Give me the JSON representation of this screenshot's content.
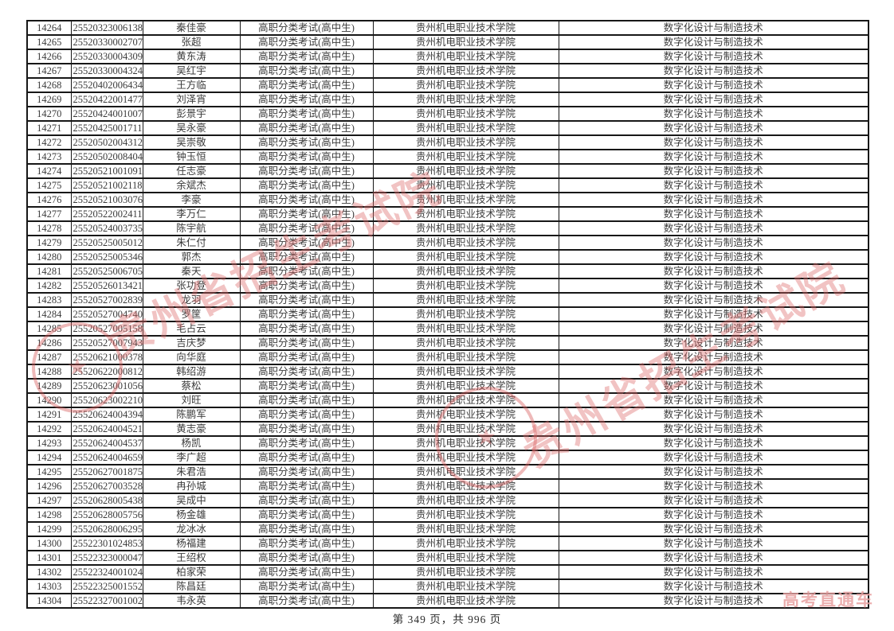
{
  "page": {
    "footer": "第 349 页，共 996 页"
  },
  "watermark": {
    "text": "贵州省招生考试院",
    "brand": "高考直通车",
    "red": "#d65858"
  },
  "table": {
    "rows": [
      {
        "seq": "14264",
        "exam_id": "25520323006138",
        "name": "秦佳豪",
        "exam_type": "高职分类考试(高中生)",
        "school": "贵州机电职业技术学院",
        "major": "数字化设计与制造技术"
      },
      {
        "seq": "14265",
        "exam_id": "25520330002707",
        "name": "张超",
        "exam_type": "高职分类考试(高中生)",
        "school": "贵州机电职业技术学院",
        "major": "数字化设计与制造技术"
      },
      {
        "seq": "14266",
        "exam_id": "25520330004309",
        "name": "黄东涛",
        "exam_type": "高职分类考试(高中生)",
        "school": "贵州机电职业技术学院",
        "major": "数字化设计与制造技术"
      },
      {
        "seq": "14267",
        "exam_id": "25520330004324",
        "name": "吴红宇",
        "exam_type": "高职分类考试(高中生)",
        "school": "贵州机电职业技术学院",
        "major": "数字化设计与制造技术"
      },
      {
        "seq": "14268",
        "exam_id": "25520402006434",
        "name": "王方临",
        "exam_type": "高职分类考试(高中生)",
        "school": "贵州机电职业技术学院",
        "major": "数字化设计与制造技术"
      },
      {
        "seq": "14269",
        "exam_id": "25520422001477",
        "name": "刘泽宵",
        "exam_type": "高职分类考试(高中生)",
        "school": "贵州机电职业技术学院",
        "major": "数字化设计与制造技术"
      },
      {
        "seq": "14270",
        "exam_id": "25520424001007",
        "name": "彭景宇",
        "exam_type": "高职分类考试(高中生)",
        "school": "贵州机电职业技术学院",
        "major": "数字化设计与制造技术"
      },
      {
        "seq": "14271",
        "exam_id": "25520425001711",
        "name": "吴永豪",
        "exam_type": "高职分类考试(高中生)",
        "school": "贵州机电职业技术学院",
        "major": "数字化设计与制造技术"
      },
      {
        "seq": "14272",
        "exam_id": "25520502004312",
        "name": "吴崇敬",
        "exam_type": "高职分类考试(高中生)",
        "school": "贵州机电职业技术学院",
        "major": "数字化设计与制造技术"
      },
      {
        "seq": "14273",
        "exam_id": "25520502008404",
        "name": "钟玉恒",
        "exam_type": "高职分类考试(高中生)",
        "school": "贵州机电职业技术学院",
        "major": "数字化设计与制造技术"
      },
      {
        "seq": "14274",
        "exam_id": "25520521001091",
        "name": "任志豪",
        "exam_type": "高职分类考试(高中生)",
        "school": "贵州机电职业技术学院",
        "major": "数字化设计与制造技术"
      },
      {
        "seq": "14275",
        "exam_id": "25520521002118",
        "name": "余斌杰",
        "exam_type": "高职分类考试(高中生)",
        "school": "贵州机电职业技术学院",
        "major": "数字化设计与制造技术"
      },
      {
        "seq": "14276",
        "exam_id": "25520521003076",
        "name": "李豪",
        "exam_type": "高职分类考试(高中生)",
        "school": "贵州机电职业技术学院",
        "major": "数字化设计与制造技术"
      },
      {
        "seq": "14277",
        "exam_id": "25520522002411",
        "name": "李万仁",
        "exam_type": "高职分类考试(高中生)",
        "school": "贵州机电职业技术学院",
        "major": "数字化设计与制造技术"
      },
      {
        "seq": "14278",
        "exam_id": "25520524003735",
        "name": "陈宇航",
        "exam_type": "高职分类考试(高中生)",
        "school": "贵州机电职业技术学院",
        "major": "数字化设计与制造技术"
      },
      {
        "seq": "14279",
        "exam_id": "25520525005012",
        "name": "朱仁付",
        "exam_type": "高职分类考试(高中生)",
        "school": "贵州机电职业技术学院",
        "major": "数字化设计与制造技术"
      },
      {
        "seq": "14280",
        "exam_id": "25520525005346",
        "name": "郭杰",
        "exam_type": "高职分类考试(高中生)",
        "school": "贵州机电职业技术学院",
        "major": "数字化设计与制造技术"
      },
      {
        "seq": "14281",
        "exam_id": "25520525006705",
        "name": "秦天",
        "exam_type": "高职分类考试(高中生)",
        "school": "贵州机电职业技术学院",
        "major": "数字化设计与制造技术"
      },
      {
        "seq": "14282",
        "exam_id": "25520526013421",
        "name": "张功登",
        "exam_type": "高职分类考试(高中生)",
        "school": "贵州机电职业技术学院",
        "major": "数字化设计与制造技术"
      },
      {
        "seq": "14283",
        "exam_id": "25520527002839",
        "name": "龙羽",
        "exam_type": "高职分类考试(高中生)",
        "school": "贵州机电职业技术学院",
        "major": "数字化设计与制造技术"
      },
      {
        "seq": "14284",
        "exam_id": "25520527004740",
        "name": "罗筐",
        "exam_type": "高职分类考试(高中生)",
        "school": "贵州机电职业技术学院",
        "major": "数字化设计与制造技术"
      },
      {
        "seq": "14285",
        "exam_id": "25520527005158",
        "name": "毛占云",
        "exam_type": "高职分类考试(高中生)",
        "school": "贵州机电职业技术学院",
        "major": "数字化设计与制造技术"
      },
      {
        "seq": "14286",
        "exam_id": "25520527007943",
        "name": "吉庆梦",
        "exam_type": "高职分类考试(高中生)",
        "school": "贵州机电职业技术学院",
        "major": "数字化设计与制造技术"
      },
      {
        "seq": "14287",
        "exam_id": "25520621000378",
        "name": "向华庭",
        "exam_type": "高职分类考试(高中生)",
        "school": "贵州机电职业技术学院",
        "major": "数字化设计与制造技术"
      },
      {
        "seq": "14288",
        "exam_id": "25520622000812",
        "name": "韩绍游",
        "exam_type": "高职分类考试(高中生)",
        "school": "贵州机电职业技术学院",
        "major": "数字化设计与制造技术"
      },
      {
        "seq": "14289",
        "exam_id": "25520623001056",
        "name": "蔡松",
        "exam_type": "高职分类考试(高中生)",
        "school": "贵州机电职业技术学院",
        "major": "数字化设计与制造技术"
      },
      {
        "seq": "14290",
        "exam_id": "25520623002210",
        "name": "刘旺",
        "exam_type": "高职分类考试(高中生)",
        "school": "贵州机电职业技术学院",
        "major": "数字化设计与制造技术"
      },
      {
        "seq": "14291",
        "exam_id": "25520624004394",
        "name": "陈鹏军",
        "exam_type": "高职分类考试(高中生)",
        "school": "贵州机电职业技术学院",
        "major": "数字化设计与制造技术"
      },
      {
        "seq": "14292",
        "exam_id": "25520624004521",
        "name": "黄志豪",
        "exam_type": "高职分类考试(高中生)",
        "school": "贵州机电职业技术学院",
        "major": "数字化设计与制造技术"
      },
      {
        "seq": "14293",
        "exam_id": "25520624004537",
        "name": "杨凯",
        "exam_type": "高职分类考试(高中生)",
        "school": "贵州机电职业技术学院",
        "major": "数字化设计与制造技术"
      },
      {
        "seq": "14294",
        "exam_id": "25520624004659",
        "name": "李广超",
        "exam_type": "高职分类考试(高中生)",
        "school": "贵州机电职业技术学院",
        "major": "数字化设计与制造技术"
      },
      {
        "seq": "14295",
        "exam_id": "25520627001875",
        "name": "朱君浩",
        "exam_type": "高职分类考试(高中生)",
        "school": "贵州机电职业技术学院",
        "major": "数字化设计与制造技术"
      },
      {
        "seq": "14296",
        "exam_id": "25520627003528",
        "name": "冉孙城",
        "exam_type": "高职分类考试(高中生)",
        "school": "贵州机电职业技术学院",
        "major": "数字化设计与制造技术"
      },
      {
        "seq": "14297",
        "exam_id": "25520628005438",
        "name": "吴成中",
        "exam_type": "高职分类考试(高中生)",
        "school": "贵州机电职业技术学院",
        "major": "数字化设计与制造技术"
      },
      {
        "seq": "14298",
        "exam_id": "25520628005756",
        "name": "杨金雄",
        "exam_type": "高职分类考试(高中生)",
        "school": "贵州机电职业技术学院",
        "major": "数字化设计与制造技术"
      },
      {
        "seq": "14299",
        "exam_id": "25520628006295",
        "name": "龙冰冰",
        "exam_type": "高职分类考试(高中生)",
        "school": "贵州机电职业技术学院",
        "major": "数字化设计与制造技术"
      },
      {
        "seq": "14300",
        "exam_id": "25522301024853",
        "name": "杨福建",
        "exam_type": "高职分类考试(高中生)",
        "school": "贵州机电职业技术学院",
        "major": "数字化设计与制造技术"
      },
      {
        "seq": "14301",
        "exam_id": "25522323000047",
        "name": "王绍权",
        "exam_type": "高职分类考试(高中生)",
        "school": "贵州机电职业技术学院",
        "major": "数字化设计与制造技术"
      },
      {
        "seq": "14302",
        "exam_id": "25522324001024",
        "name": "柏家荣",
        "exam_type": "高职分类考试(高中生)",
        "school": "贵州机电职业技术学院",
        "major": "数字化设计与制造技术"
      },
      {
        "seq": "14303",
        "exam_id": "25522325001552",
        "name": "陈昌廷",
        "exam_type": "高职分类考试(高中生)",
        "school": "贵州机电职业技术学院",
        "major": "数字化设计与制造技术"
      },
      {
        "seq": "14304",
        "exam_id": "25522327001002",
        "name": "韦永英",
        "exam_type": "高职分类考试(高中生)",
        "school": "贵州机电职业技术学院",
        "major": "数字化设计与制造技术"
      }
    ]
  }
}
